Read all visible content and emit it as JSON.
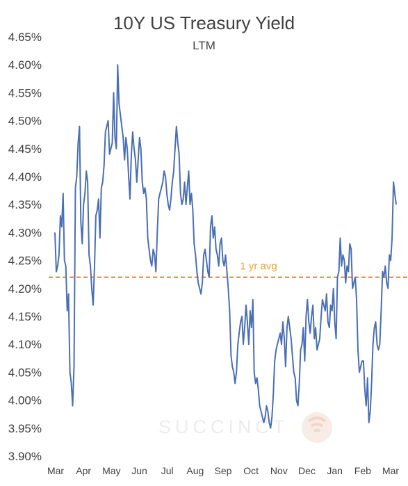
{
  "colors": {
    "line": "#4A6FB5",
    "avg": "#ED7D31",
    "avg_label": "#E8A33D",
    "watermark": "#ececec"
  },
  "watermark": {
    "text": "SUCCINCT"
  },
  "chart_data": {
    "type": "line",
    "title": "10Y US Treasury Yield",
    "subtitle": "LTM",
    "xlabel": "",
    "ylabel": "",
    "ylim": [
      3.9,
      4.65
    ],
    "y_ticks": [
      "3.90%",
      "3.95%",
      "4.00%",
      "4.05%",
      "4.10%",
      "4.15%",
      "4.20%",
      "4.25%",
      "4.30%",
      "4.35%",
      "4.40%",
      "4.45%",
      "4.50%",
      "4.55%",
      "4.60%",
      "4.65%"
    ],
    "x_ticks": [
      "Mar",
      "Apr",
      "May",
      "Jun",
      "Jul",
      "Aug",
      "Sep",
      "Oct",
      "Nov",
      "Dec",
      "Jan",
      "Feb",
      "Mar"
    ],
    "grid": false,
    "reference_line": {
      "label": "1 yr avg",
      "value": 4.22,
      "style": "dashed"
    },
    "series": [
      {
        "values": [
          4.3,
          4.23,
          4.24,
          4.26,
          4.33,
          4.31,
          4.37,
          4.25,
          4.24,
          4.16,
          4.19,
          4.05,
          4.03,
          3.99,
          4.06,
          4.38,
          4.4,
          4.46,
          4.49,
          4.32,
          4.28,
          4.35,
          4.37,
          4.41,
          4.39,
          4.26,
          4.24,
          4.2,
          4.17,
          4.24,
          4.33,
          4.34,
          4.36,
          4.29,
          4.38,
          4.39,
          4.42,
          4.48,
          4.49,
          4.5,
          4.44,
          4.45,
          4.46,
          4.55,
          4.47,
          4.45,
          4.6,
          4.53,
          4.51,
          4.49,
          4.47,
          4.43,
          4.47,
          4.45,
          4.4,
          4.36,
          4.44,
          4.48,
          4.45,
          4.43,
          4.39,
          4.43,
          4.47,
          4.45,
          4.39,
          4.37,
          4.38,
          4.36,
          4.29,
          4.27,
          4.25,
          4.24,
          4.27,
          4.26,
          4.23,
          4.3,
          4.36,
          4.37,
          4.38,
          4.39,
          4.41,
          4.4,
          4.37,
          4.35,
          4.34,
          4.36,
          4.39,
          4.41,
          4.45,
          4.49,
          4.46,
          4.44,
          4.37,
          4.35,
          4.36,
          4.39,
          4.35,
          4.38,
          4.41,
          4.35,
          4.37,
          4.34,
          4.28,
          4.26,
          4.23,
          4.21,
          4.2,
          4.19,
          4.21,
          4.26,
          4.27,
          4.25,
          4.23,
          4.22,
          4.31,
          4.33,
          4.29,
          4.31,
          4.27,
          4.26,
          4.24,
          4.28,
          4.29,
          4.25,
          4.24,
          4.26,
          4.23,
          4.2,
          4.16,
          4.08,
          4.06,
          4.05,
          4.03,
          4.05,
          4.1,
          4.12,
          4.14,
          4.15,
          4.1,
          4.13,
          4.17,
          4.14,
          4.1,
          4.16,
          4.13,
          4.18,
          4.05,
          4.03,
          4.04,
          4.02,
          3.99,
          3.98,
          3.97,
          3.96,
          3.97,
          3.99,
          3.98,
          3.96,
          3.95,
          3.97,
          4.01,
          4.07,
          4.09,
          4.1,
          4.11,
          4.12,
          4.1,
          4.14,
          4.11,
          4.06,
          4.13,
          4.15,
          4.13,
          4.11,
          4.08,
          4.05,
          4.04,
          4.0,
          3.99,
          4.03,
          4.09,
          4.1,
          4.13,
          4.07,
          4.15,
          4.18,
          4.14,
          4.12,
          4.15,
          4.17,
          4.11,
          4.13,
          4.09,
          4.1,
          4.11,
          4.15,
          4.18,
          4.17,
          4.16,
          4.19,
          4.14,
          4.13,
          4.17,
          4.16,
          4.2,
          4.14,
          4.11,
          4.22,
          4.23,
          4.29,
          4.24,
          4.26,
          4.25,
          4.21,
          4.24,
          4.23,
          4.28,
          4.27,
          4.2,
          4.21,
          4.22,
          4.18,
          4.09,
          4.05,
          4.06,
          4.07,
          4.07,
          4.02,
          3.99,
          4.04,
          3.96,
          3.98,
          4.03,
          4.1,
          4.13,
          4.14,
          4.1,
          4.09,
          4.1,
          4.16,
          4.23,
          4.22,
          4.24,
          4.21,
          4.2,
          4.26,
          4.25,
          4.29,
          4.39,
          4.37,
          4.35
        ]
      }
    ]
  }
}
